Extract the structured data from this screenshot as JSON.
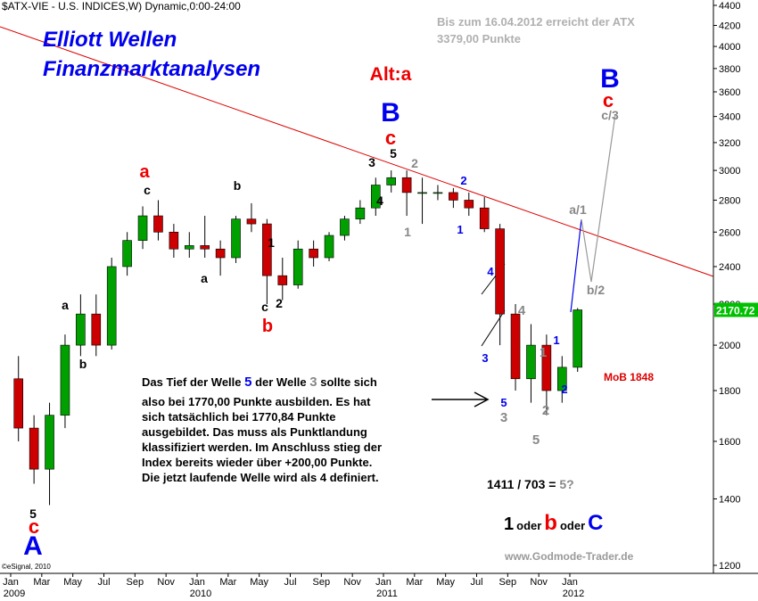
{
  "chart_data": {
    "type": "candlestick",
    "title": "$ATX-VIE - U.S. INDICES,W) Dynamic,0:00-24:00",
    "note_lines": [
      "Bis zum 16.04.2012 erreicht der ATX",
      "3379,00 Punkte"
    ],
    "copyright": "©eSignal, 2010",
    "source": "www.Godmode-Trader.de",
    "log_scale": true,
    "up_color": "#00a000",
    "down_color": "#cc0000",
    "last_label_color": "#00c000",
    "x": [
      "2009-01",
      "2009-02",
      "2009-03",
      "2009-04",
      "2009-05",
      "2009-06",
      "2009-07",
      "2009-08",
      "2009-09",
      "2009-10",
      "2009-11",
      "2009-12",
      "2010-01",
      "2010-02",
      "2010-03",
      "2010-04",
      "2010-05",
      "2010-06",
      "2010-07",
      "2010-08",
      "2010-09",
      "2010-10",
      "2010-11",
      "2010-12",
      "2011-01",
      "2011-02",
      "2011-03",
      "2011-04",
      "2011-05",
      "2011-06",
      "2011-07",
      "2011-08",
      "2011-09",
      "2011-10",
      "2011-11",
      "2011-12",
      "2012-01"
    ],
    "open": [
      1850,
      1650,
      1500,
      1700,
      2000,
      2150,
      2000,
      2400,
      2550,
      2700,
      2600,
      2500,
      2520,
      2500,
      2450,
      2680,
      2650,
      2350,
      2300,
      2500,
      2450,
      2580,
      2680,
      2750,
      2900,
      2950,
      2850,
      2850,
      2850,
      2800,
      2750,
      2620,
      2150,
      1850,
      2000,
      1800,
      1900
    ],
    "high": [
      1950,
      1700,
      1750,
      2050,
      2250,
      2250,
      2450,
      2600,
      2760,
      2800,
      2650,
      2600,
      2700,
      2550,
      2700,
      2780,
      2680,
      2450,
      2550,
      2550,
      2600,
      2700,
      2800,
      2950,
      3000,
      3000,
      2950,
      2900,
      2880,
      2850,
      2820,
      2650,
      2200,
      2100,
      2050,
      1950,
      2180
    ],
    "low": [
      1600,
      1450,
      1380,
      1650,
      1950,
      1950,
      1980,
      2350,
      2500,
      2550,
      2450,
      2450,
      2450,
      2350,
      2420,
      2600,
      2200,
      2220,
      2280,
      2400,
      2430,
      2550,
      2650,
      2700,
      2850,
      2700,
      2650,
      2800,
      2750,
      2700,
      2600,
      2000,
      1800,
      1750,
      1700,
      1750,
      1880
    ],
    "close": [
      1650,
      1500,
      1700,
      2000,
      2150,
      2000,
      2400,
      2550,
      2700,
      2600,
      2500,
      2520,
      2500,
      2450,
      2680,
      2650,
      2350,
      2300,
      2500,
      2450,
      2580,
      2680,
      2750,
      2900,
      2950,
      2850,
      2850,
      2850,
      2800,
      2750,
      2620,
      2150,
      1850,
      2000,
      1800,
      1900,
      2170.72
    ],
    "ylim": [
      1200,
      4400
    ],
    "yticks": [
      1200,
      1400,
      1600,
      1800,
      2000,
      2200,
      2400,
      2600,
      2800,
      3000,
      3200,
      3400,
      3600,
      3800,
      4000,
      4200,
      4400
    ],
    "xticks": [
      {
        "value": "2009-01",
        "label": "Jan"
      },
      {
        "value": "2009-03",
        "label": "Mar"
      },
      {
        "value": "2009-05",
        "label": "May"
      },
      {
        "value": "2009-07",
        "label": "Jul"
      },
      {
        "value": "2009-09",
        "label": "Sep"
      },
      {
        "value": "2009-11",
        "label": "Nov"
      },
      {
        "value": "2010-01",
        "label": "Jan"
      },
      {
        "value": "2010-03",
        "label": "Mar"
      },
      {
        "value": "2010-05",
        "label": "May"
      },
      {
        "value": "2010-07",
        "label": "Jul"
      },
      {
        "value": "2010-09",
        "label": "Sep"
      },
      {
        "value": "2010-11",
        "label": "Nov"
      },
      {
        "value": "2011-01",
        "label": "Jan"
      },
      {
        "value": "2011-03",
        "label": "Mar"
      },
      {
        "value": "2011-05",
        "label": "May"
      },
      {
        "value": "2011-07",
        "label": "Jul"
      },
      {
        "value": "2011-09",
        "label": "Sep"
      },
      {
        "value": "2011-11",
        "label": "Nov"
      },
      {
        "value": "2012-01",
        "label": "Jan"
      }
    ],
    "year_ticks": [
      {
        "value": "2009-01",
        "label": "2009"
      },
      {
        "value": "2010-01",
        "label": "2010"
      },
      {
        "value": "2011-01",
        "label": "2011"
      },
      {
        "value": "2012-01",
        "label": "2012"
      }
    ],
    "annotations": [
      {
        "text": "Elliott Wellen",
        "color": "#0000ee"
      },
      {
        "text": "Finanzmarktanalysen",
        "color": "#0000ee"
      },
      {
        "text": "Alt:a",
        "color": "#ee0000"
      },
      {
        "text": "B",
        "color": "#0000ee"
      },
      {
        "text": "c",
        "color": "#ee0000"
      },
      {
        "text": "5",
        "color": "#000"
      },
      {
        "text": "3",
        "color": "#000"
      },
      {
        "text": "2",
        "color": "#888"
      },
      {
        "text": "4",
        "color": "#000"
      },
      {
        "text": "1",
        "color": "#888"
      },
      {
        "text": "2",
        "color": "#0000ee"
      },
      {
        "text": "1",
        "color": "#0000ee"
      },
      {
        "text": "4",
        "color": "#0000ee"
      },
      {
        "text": "3",
        "color": "#0000ee"
      },
      {
        "text": "5",
        "color": "#0000ee"
      },
      {
        "text": "3",
        "color": "#888"
      },
      {
        "text": "4",
        "color": "#888"
      },
      {
        "text": "1",
        "color": "#888"
      },
      {
        "text": "2",
        "color": "#888"
      },
      {
        "text": "5",
        "color": "#888"
      },
      {
        "text": "1",
        "color": "#0000ee"
      },
      {
        "text": "2",
        "color": "#0000ee"
      },
      {
        "text": "a/1",
        "color": "#888"
      },
      {
        "text": "b/2",
        "color": "#888"
      },
      {
        "text": "c/3",
        "color": "#888"
      },
      {
        "text": "B",
        "color": "#0000ee"
      },
      {
        "text": "c",
        "color": "#ee0000"
      },
      {
        "text": "a",
        "color": "#ee0000"
      },
      {
        "text": "c",
        "color": "#000"
      },
      {
        "text": "b",
        "color": "#000"
      },
      {
        "text": "a",
        "color": "#000"
      },
      {
        "text": "1",
        "color": "#000"
      },
      {
        "text": "c",
        "color": "#000"
      },
      {
        "text": "2",
        "color": "#000"
      },
      {
        "text": "b",
        "color": "#ee0000"
      },
      {
        "text": "a",
        "color": "#000"
      },
      {
        "text": "b",
        "color": "#000"
      },
      {
        "text": "5",
        "color": "#000"
      },
      {
        "text": "c",
        "color": "#ee0000"
      },
      {
        "text": "A",
        "color": "#0000ee"
      },
      {
        "text": "MoB 1848",
        "color": "#dd0000"
      }
    ],
    "paragraph_first_line": [
      {
        "text": "Das Tief der Welle ",
        "color": "#000"
      },
      {
        "text": "5",
        "color": "#0000ee"
      },
      {
        "text": " der Welle ",
        "color": "#000"
      },
      {
        "text": "3",
        "color": "#888"
      },
      {
        "text": " sollte sich",
        "color": "#000"
      }
    ],
    "paragraph_lines": [
      "also bei 1770,00 Punkte ausbilden. Es hat",
      "sich tatsächlich bei 1770,84 Punkte",
      "ausgebildet. Das muss als Punktlandung",
      "klassifiziert werden. Im Anschluss stieg der",
      "Index bereits wieder über +200,00 Punkte.",
      "Die jetzt laufende Welle wird als 4 definiert."
    ],
    "ratio": [
      {
        "text": "1411 / 703 = ",
        "color": "#000"
      },
      {
        "text": "5?",
        "color": "#888"
      }
    ],
    "conclusion": [
      {
        "text": "1",
        "color": "#000"
      },
      {
        "text": "oder",
        "color": "#000"
      },
      {
        "text": "b",
        "color": "#ee0000"
      },
      {
        "text": "oder",
        "color": "#000"
      },
      {
        "text": "C",
        "color": "#0000ee"
      }
    ]
  }
}
